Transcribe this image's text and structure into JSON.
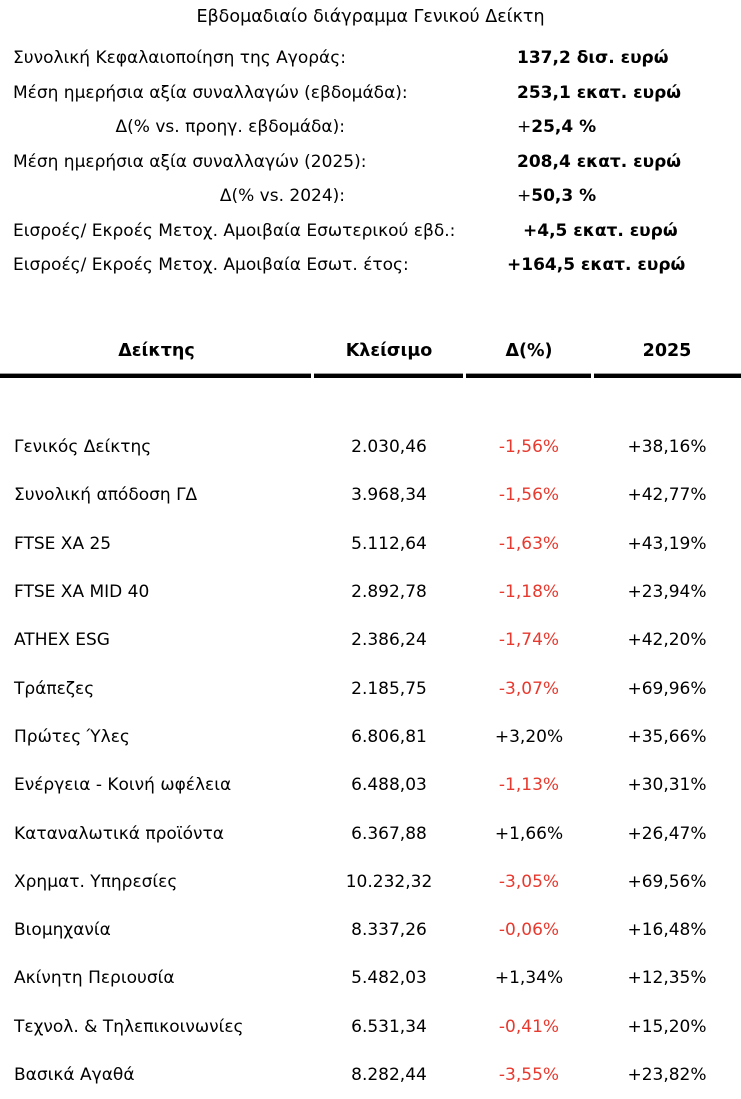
{
  "title": "Εβδομαδιαίο διάγραμμα Γενικού Δείκτη",
  "summary": {
    "rows": [
      {
        "label": "Συνολική Κεφαλαιοποίηση της Αγοράς:",
        "sign": "",
        "value": "137,2 δισ. ευρώ"
      },
      {
        "label": "Μέση ημερήσια αξία συναλλαγών (εβδομάδα):",
        "sign": "",
        "value": "253,1 εκατ. ευρώ"
      },
      {
        "label": "Δ(% vs. προηγ. εβδομάδα):",
        "sign": "+",
        "value": "25,4 %"
      },
      {
        "label": "Μέση ημερήσια αξία συναλλαγών (2025):",
        "sign": "",
        "value": "208,4 εκατ. ευρώ"
      },
      {
        "label": "Δ(% vs. 2024):",
        "sign": "+",
        "value": "50,3 %"
      },
      {
        "label": "Εισροές/ Εκροές Μετοχ. Αμοιβαία Εσωτερικού εβδ.:",
        "sign": "",
        "value": "+4,5 εκατ. ευρώ"
      },
      {
        "label": "Εισροές/ Εκροές Μετοχ. Αμοιβαία Εσωτ. έτος:",
        "sign": "",
        "value": "+164,5 εκατ. ευρώ"
      }
    ]
  },
  "table": {
    "headers": [
      "Δείκτης",
      "Κλείσιμο",
      "Δ(%)",
      "2025"
    ],
    "rows": [
      {
        "name": "Γενικός Δείκτης",
        "close": "2.030,46",
        "change": "-1,56%",
        "ytd": "+38,16%"
      },
      {
        "name": "Συνολική απόδοση ΓΔ",
        "close": "3.968,34",
        "change": "-1,56%",
        "ytd": "+42,77%"
      },
      {
        "name": "FTSE XA 25",
        "close": "5.112,64",
        "change": "-1,63%",
        "ytd": "+43,19%"
      },
      {
        "name": "FTSE XA MID 40",
        "close": "2.892,78",
        "change": "-1,18%",
        "ytd": "+23,94%"
      },
      {
        "name": "ATHEX ESG",
        "close": "2.386,24",
        "change": "-1,74%",
        "ytd": "+42,20%"
      },
      {
        "name": "Τράπεζες",
        "close": "2.185,75",
        "change": "-3,07%",
        "ytd": "+69,96%"
      },
      {
        "name": "Πρώτες Ύλες",
        "close": "6.806,81",
        "change": "+3,20%",
        "ytd": "+35,66%"
      },
      {
        "name": "Ενέργεια - Κοινή ωφέλεια",
        "close": "6.488,03",
        "change": "-1,13%",
        "ytd": "+30,31%"
      },
      {
        "name": "Καταναλωτικά προϊόντα",
        "close": "6.367,88",
        "change": "+1,66%",
        "ytd": "+26,47%"
      },
      {
        "name": "Χρηματ. Υπηρεσίες",
        "close": "10.232,32",
        "change": "-3,05%",
        "ytd": "+69,56%"
      },
      {
        "name": "Βιομηχανία",
        "close": "8.337,26",
        "change": "-0,06%",
        "ytd": "+16,48%"
      },
      {
        "name": "Ακίνητη Περιουσία",
        "close": "5.482,03",
        "change": "+1,34%",
        "ytd": "+12,35%"
      },
      {
        "name": "Τεχνολ. & Τηλεπικοινωνίες",
        "close": "6.531,34",
        "change": "-0,41%",
        "ytd": "+15,20%"
      },
      {
        "name": "Βασικά Αγαθά",
        "close": "8.282,44",
        "change": "-3,55%",
        "ytd": "+23,82%"
      }
    ]
  },
  "colors": {
    "negative": "#e8392e",
    "text": "#000000",
    "background": "#ffffff"
  }
}
